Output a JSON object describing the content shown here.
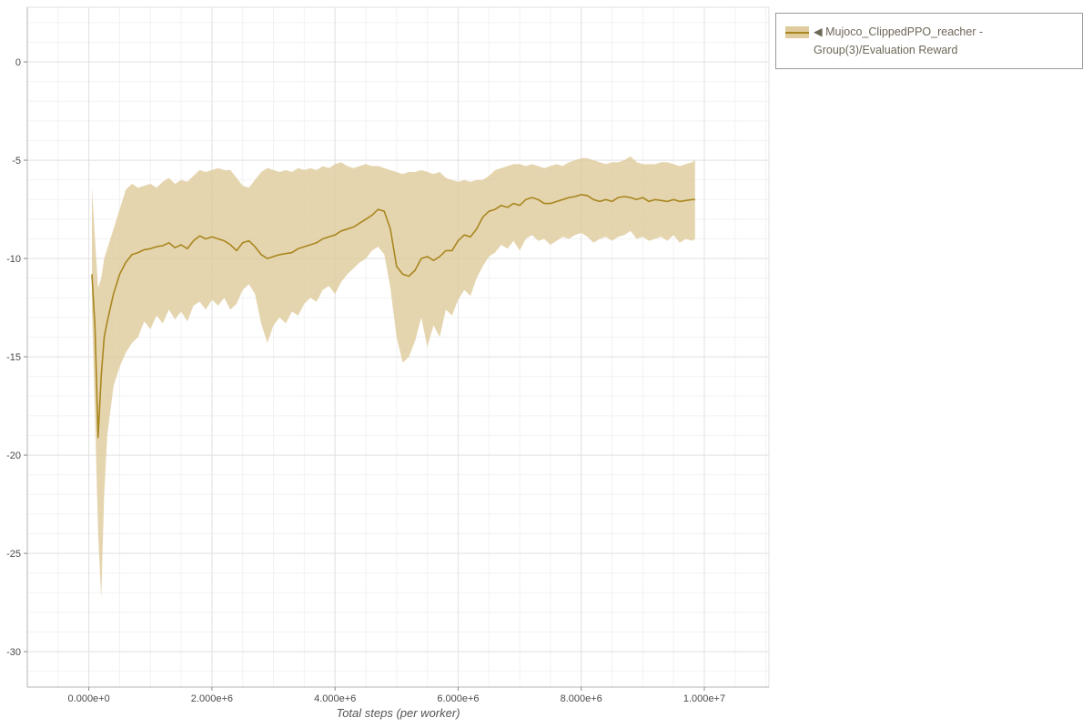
{
  "page": {
    "background": "#ffffff"
  },
  "legend": {
    "collapse_marker": "◀",
    "label": "Mujoco_ClippedPPO_reacher - Group(3)/Evaluation Reward",
    "series_color": "#a9861e",
    "band_color": "#dfcb9b"
  },
  "chart_data": {
    "type": "line",
    "title": "",
    "xlabel": "Total steps (per worker)",
    "ylabel": "",
    "x_unit": "steps",
    "x_scale": 1000000,
    "xlim_millions": [
      -1.0,
      11.05
    ],
    "ylim": [
      -31.8,
      2.78
    ],
    "grid": true,
    "minor_x_step_millions": 0.5,
    "minor_y_step": 1,
    "legend_position": "top-right-outside",
    "x_ticks": [
      {
        "value_millions": 0,
        "label": "0.000e+0"
      },
      {
        "value_millions": 2,
        "label": "2.000e+6"
      },
      {
        "value_millions": 4,
        "label": "4.000e+6"
      },
      {
        "value_millions": 6,
        "label": "6.000e+6"
      },
      {
        "value_millions": 8,
        "label": "8.000e+6"
      },
      {
        "value_millions": 10,
        "label": "1.000e+7"
      }
    ],
    "y_ticks": [
      {
        "value": 0,
        "label": "0"
      },
      {
        "value": -5,
        "label": "-5"
      },
      {
        "value": -10,
        "label": "-10"
      },
      {
        "value": -15,
        "label": "-15"
      },
      {
        "value": -20,
        "label": "-20"
      },
      {
        "value": -25,
        "label": "-25"
      },
      {
        "value": -30,
        "label": "-30"
      }
    ],
    "series": [
      {
        "name": "Mujoco_ClippedPPO_reacher - Group(3)/Evaluation Reward",
        "color": "#a9861e",
        "band_color": "#dfcb9b",
        "band_opacity": 0.8,
        "x_millions": [
          0.05,
          0.1,
          0.15,
          0.2,
          0.25,
          0.3,
          0.4,
          0.5,
          0.6,
          0.7,
          0.8,
          0.9,
          1.0,
          1.1,
          1.2,
          1.3,
          1.4,
          1.5,
          1.6,
          1.7,
          1.8,
          1.9,
          2.0,
          2.1,
          2.2,
          2.3,
          2.4,
          2.5,
          2.6,
          2.7,
          2.8,
          2.9,
          3.0,
          3.1,
          3.2,
          3.3,
          3.4,
          3.5,
          3.6,
          3.7,
          3.8,
          3.9,
          4.0,
          4.1,
          4.2,
          4.3,
          4.4,
          4.5,
          4.6,
          4.7,
          4.8,
          4.9,
          5.0,
          5.1,
          5.2,
          5.3,
          5.4,
          5.5,
          5.6,
          5.7,
          5.8,
          5.9,
          6.0,
          6.1,
          6.2,
          6.3,
          6.4,
          6.5,
          6.6,
          6.7,
          6.8,
          6.9,
          7.0,
          7.1,
          7.2,
          7.3,
          7.4,
          7.5,
          7.6,
          7.7,
          7.8,
          7.9,
          8.0,
          8.1,
          8.2,
          8.3,
          8.4,
          8.5,
          8.6,
          8.7,
          8.8,
          8.9,
          9.0,
          9.1,
          9.2,
          9.3,
          9.4,
          9.5,
          9.6,
          9.7,
          9.8,
          9.85
        ],
        "mean": [
          -10.8,
          -13.5,
          -19.1,
          -16.0,
          -14.0,
          -13.2,
          -11.8,
          -10.8,
          -10.2,
          -9.8,
          -9.7,
          -9.55,
          -9.5,
          -9.4,
          -9.35,
          -9.2,
          -9.45,
          -9.3,
          -9.5,
          -9.1,
          -8.85,
          -9.0,
          -8.9,
          -9.0,
          -9.1,
          -9.3,
          -9.6,
          -9.2,
          -9.1,
          -9.4,
          -9.8,
          -10.0,
          -9.9,
          -9.8,
          -9.75,
          -9.7,
          -9.5,
          -9.4,
          -9.3,
          -9.2,
          -9.0,
          -8.9,
          -8.8,
          -8.6,
          -8.5,
          -8.4,
          -8.2,
          -8.0,
          -7.8,
          -7.5,
          -7.6,
          -8.5,
          -10.4,
          -10.8,
          -10.9,
          -10.6,
          -10.0,
          -9.9,
          -10.1,
          -9.9,
          -9.6,
          -9.6,
          -9.1,
          -8.8,
          -8.9,
          -8.5,
          -7.9,
          -7.6,
          -7.5,
          -7.3,
          -7.4,
          -7.2,
          -7.3,
          -7.0,
          -6.9,
          -7.0,
          -7.2,
          -7.2,
          -7.1,
          -7.0,
          -6.9,
          -6.85,
          -6.75,
          -6.8,
          -7.0,
          -7.1,
          -7.0,
          -7.1,
          -6.9,
          -6.85,
          -6.9,
          -7.0,
          -6.9,
          -7.1,
          -7.0,
          -7.05,
          -7.1,
          -7.0,
          -7.1,
          -7.05,
          -7.0,
          -7.0
        ],
        "upper": [
          -6.4,
          -9.0,
          -11.5,
          -11.0,
          -10.0,
          -9.5,
          -8.5,
          -7.5,
          -6.5,
          -6.2,
          -6.4,
          -6.3,
          -6.2,
          -6.4,
          -6.1,
          -5.9,
          -6.2,
          -6.0,
          -6.1,
          -5.8,
          -5.5,
          -5.6,
          -5.5,
          -5.4,
          -5.5,
          -5.5,
          -5.9,
          -6.3,
          -6.4,
          -6.0,
          -5.6,
          -5.4,
          -5.5,
          -5.6,
          -5.5,
          -5.6,
          -5.4,
          -5.5,
          -5.4,
          -5.5,
          -5.3,
          -5.4,
          -5.2,
          -5.1,
          -5.3,
          -5.4,
          -5.3,
          -5.2,
          -5.3,
          -5.3,
          -5.4,
          -5.5,
          -5.6,
          -5.7,
          -5.6,
          -5.6,
          -5.5,
          -5.6,
          -5.7,
          -5.6,
          -5.9,
          -6.0,
          -6.1,
          -6.0,
          -6.1,
          -6.0,
          -6.0,
          -5.8,
          -5.5,
          -5.4,
          -5.3,
          -5.2,
          -5.2,
          -5.3,
          -5.2,
          -5.3,
          -5.4,
          -5.3,
          -5.2,
          -5.3,
          -5.1,
          -5.0,
          -4.9,
          -4.9,
          -5.0,
          -5.1,
          -5.2,
          -5.1,
          -5.1,
          -5.0,
          -4.8,
          -5.1,
          -5.2,
          -5.2,
          -5.2,
          -5.1,
          -5.1,
          -5.2,
          -5.3,
          -5.2,
          -5.1,
          -5.0
        ],
        "lower": [
          -12.6,
          -18.0,
          -24.0,
          -27.3,
          -22.0,
          -19.0,
          -16.5,
          -15.5,
          -14.8,
          -14.3,
          -14.0,
          -13.2,
          -13.6,
          -12.9,
          -13.3,
          -12.6,
          -13.1,
          -12.7,
          -13.2,
          -12.4,
          -12.2,
          -12.6,
          -12.1,
          -12.4,
          -12.0,
          -12.6,
          -12.3,
          -11.6,
          -11.3,
          -11.8,
          -13.3,
          -14.3,
          -13.4,
          -13.0,
          -13.3,
          -12.7,
          -12.9,
          -12.3,
          -12.0,
          -12.2,
          -11.6,
          -11.4,
          -11.8,
          -11.2,
          -10.8,
          -10.5,
          -10.2,
          -10.0,
          -9.6,
          -9.4,
          -9.8,
          -11.5,
          -14.0,
          -15.3,
          -15.0,
          -14.2,
          -13.0,
          -14.5,
          -13.4,
          -14.0,
          -12.6,
          -12.9,
          -12.1,
          -11.6,
          -11.9,
          -11.0,
          -10.4,
          -9.9,
          -9.7,
          -9.3,
          -9.5,
          -9.1,
          -9.6,
          -9.0,
          -8.8,
          -9.1,
          -9.0,
          -9.3,
          -9.1,
          -8.9,
          -9.0,
          -8.8,
          -8.7,
          -8.9,
          -9.2,
          -9.0,
          -8.9,
          -9.1,
          -8.9,
          -8.8,
          -8.6,
          -9.0,
          -8.9,
          -9.1,
          -9.0,
          -8.9,
          -9.1,
          -8.8,
          -9.2,
          -9.0,
          -9.1,
          -9.0
        ]
      }
    ]
  }
}
